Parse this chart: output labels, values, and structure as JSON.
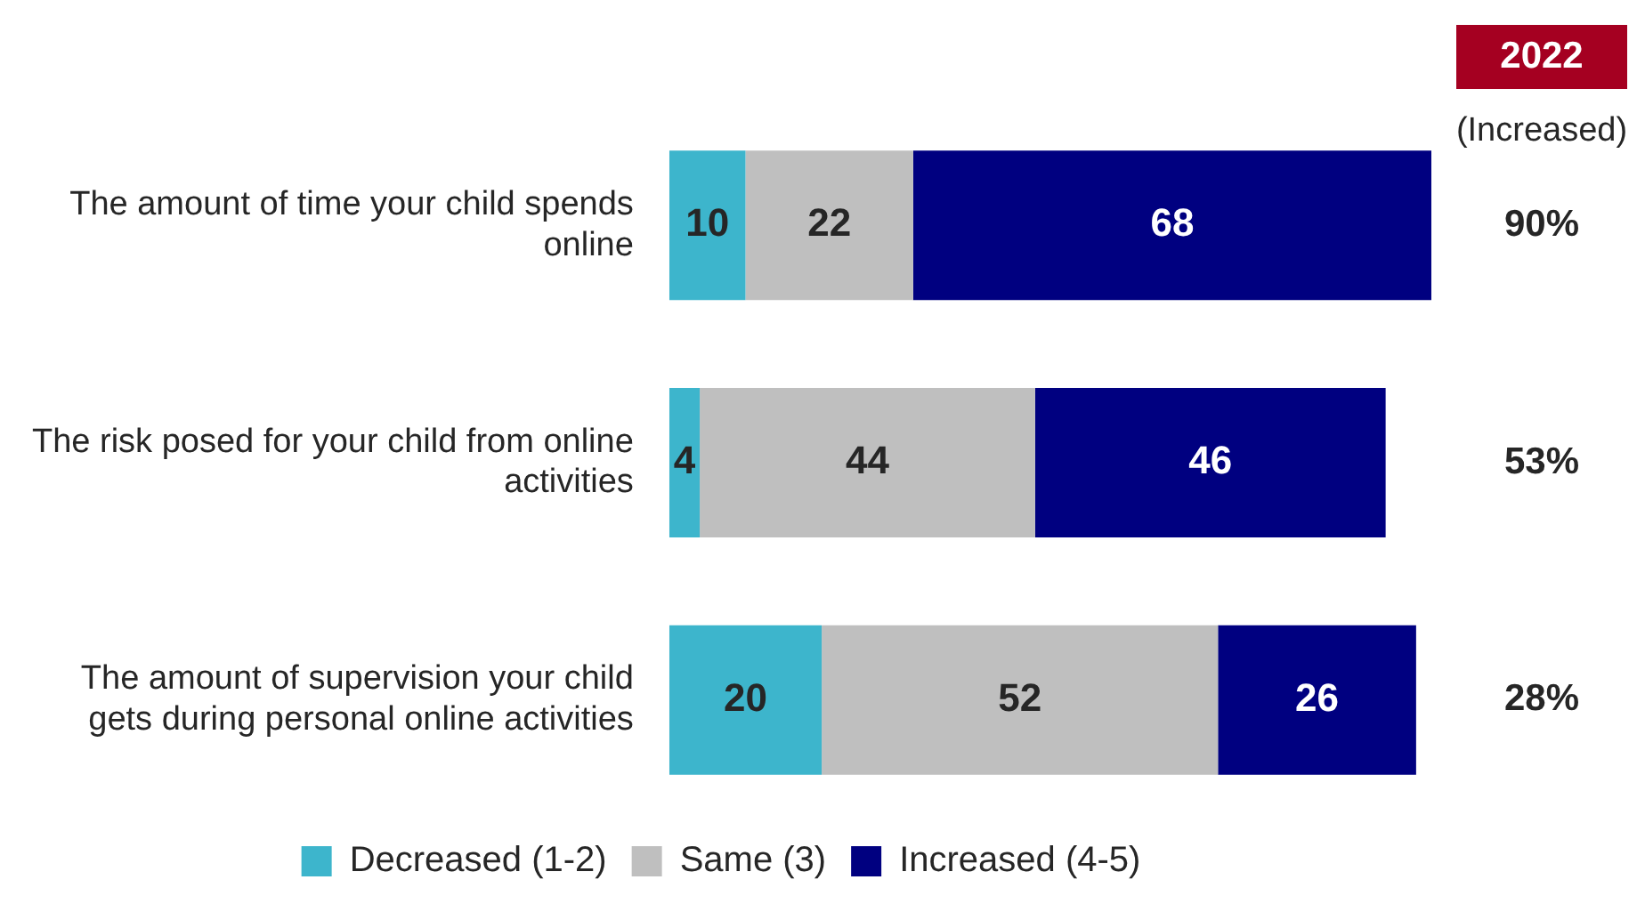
{
  "chart_data": {
    "type": "bar",
    "orientation": "horizontal",
    "stacked": true,
    "categories": [
      "The amount of time your child spends online",
      "The risk posed for your child from online activities",
      "The amount of supervision your child gets during personal online activities"
    ],
    "series": [
      {
        "name": "Decreased (1-2)",
        "color": "#3db5cc",
        "values": [
          10,
          4,
          20
        ]
      },
      {
        "name": "Same (3)",
        "color": "#bfbfbf",
        "values": [
          22,
          44,
          52
        ]
      },
      {
        "name": "Increased (4-5)",
        "color": "#000080",
        "values": [
          68,
          46,
          26
        ]
      }
    ],
    "xlim": [
      0,
      100
    ],
    "tick_labels": "y",
    "legend": "bottom",
    "data_labels": true,
    "annotations": [
      "2022",
      "(Increased)",
      "90%",
      "53%",
      "28%"
    ]
  }
}
